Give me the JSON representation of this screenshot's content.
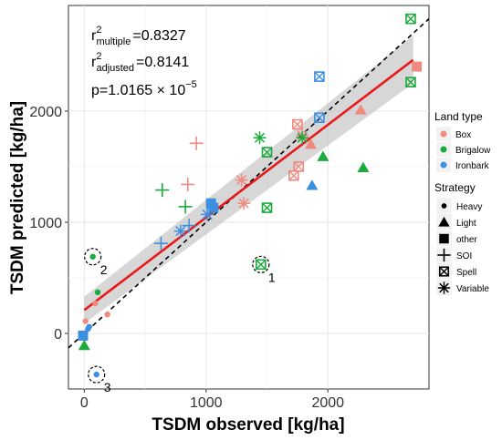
{
  "chart_data": {
    "type": "scatter",
    "title": "",
    "xlabel": "TSDM observed [kg/ha]",
    "ylabel": "TSDM predicted [kg/ha]",
    "xlim": [
      -130,
      2830
    ],
    "ylim": [
      -500,
      2950
    ],
    "xticks": [
      0,
      1000,
      2000
    ],
    "yticks": [
      0,
      1000,
      2000
    ],
    "grid": true,
    "stats": {
      "r2_multiple": {
        "base": "r",
        "sup": "2",
        "sub": "multiple",
        "value": "=0.8327"
      },
      "r2_adjusted": {
        "base": "r",
        "sup": "2",
        "sub": "adjusted",
        "value": "=0.8141"
      },
      "p_value": {
        "text": "p=1.0165 × 10",
        "exp": "−5"
      }
    },
    "reference_line": {
      "style": "dashed",
      "color": "#000000",
      "slope": 1,
      "intercept": 0
    },
    "fit_line": {
      "color": "#e8191b",
      "x": [
        0,
        2700
      ],
      "y": [
        210,
        2460
      ],
      "band_lower": [
        90,
        2250
      ],
      "band_upper": [
        330,
        2680
      ],
      "band_color": "#bdbdbd"
    },
    "legend": {
      "placement": "right",
      "land_type": {
        "title": "Land type",
        "items": [
          {
            "label": "Box",
            "color": "#f08a80"
          },
          {
            "label": "Brigalow",
            "color": "#1aab3c"
          },
          {
            "label": "Ironbark",
            "color": "#3d8fe0"
          }
        ]
      },
      "strategy": {
        "title": "Strategy",
        "items": [
          {
            "label": "Heavy",
            "shape": "dot"
          },
          {
            "label": "Light",
            "shape": "triangle"
          },
          {
            "label": "other",
            "shape": "square"
          },
          {
            "label": "SOI",
            "shape": "plus"
          },
          {
            "label": "Spell",
            "shape": "boxx"
          },
          {
            "label": "Variable",
            "shape": "asterisk"
          }
        ]
      }
    },
    "points": [
      {
        "x": 10,
        "y": 110,
        "land": "Box",
        "shape": "dot"
      },
      {
        "x": 90,
        "y": 270,
        "land": "Box",
        "shape": "dot"
      },
      {
        "x": 190,
        "y": 170,
        "land": "Box",
        "shape": "dot"
      },
      {
        "x": 110,
        "y": 370,
        "land": "Brigalow",
        "shape": "dot"
      },
      {
        "x": 70,
        "y": 690,
        "land": "Brigalow",
        "shape": "dot"
      },
      {
        "x": 100,
        "y": -370,
        "land": "Ironbark",
        "shape": "dot"
      },
      {
        "x": 30,
        "y": 40,
        "land": "Ironbark",
        "shape": "dot"
      },
      {
        "x": 40,
        "y": 60,
        "land": "Ironbark",
        "shape": "dot"
      },
      {
        "x": -10,
        "y": -20,
        "land": "Ironbark",
        "shape": "square"
      },
      {
        "x": 0,
        "y": -110,
        "land": "Brigalow",
        "shape": "triangle"
      },
      {
        "x": 1860,
        "y": 1700,
        "land": "Box",
        "shape": "triangle"
      },
      {
        "x": 2270,
        "y": 2010,
        "land": "Box",
        "shape": "triangle"
      },
      {
        "x": 1960,
        "y": 1590,
        "land": "Brigalow",
        "shape": "triangle"
      },
      {
        "x": 2290,
        "y": 1490,
        "land": "Brigalow",
        "shape": "triangle"
      },
      {
        "x": 1870,
        "y": 1330,
        "land": "Ironbark",
        "shape": "triangle"
      },
      {
        "x": 1040,
        "y": 1170,
        "land": "Ironbark",
        "shape": "square"
      },
      {
        "x": 1060,
        "y": 1130,
        "land": "Ironbark",
        "shape": "square"
      },
      {
        "x": 2730,
        "y": 2400,
        "land": "Box",
        "shape": "square"
      },
      {
        "x": 920,
        "y": 1710,
        "land": "Box",
        "shape": "plus"
      },
      {
        "x": 850,
        "y": 1340,
        "land": "Box",
        "shape": "plus"
      },
      {
        "x": 640,
        "y": 1290,
        "land": "Brigalow",
        "shape": "plus"
      },
      {
        "x": 830,
        "y": 1140,
        "land": "Brigalow",
        "shape": "plus"
      },
      {
        "x": 630,
        "y": 810,
        "land": "Ironbark",
        "shape": "plus"
      },
      {
        "x": 860,
        "y": 970,
        "land": "Ironbark",
        "shape": "plus"
      },
      {
        "x": 1750,
        "y": 1880,
        "land": "Box",
        "shape": "boxx"
      },
      {
        "x": 1760,
        "y": 1500,
        "land": "Box",
        "shape": "boxx"
      },
      {
        "x": 1720,
        "y": 1420,
        "land": "Box",
        "shape": "boxx"
      },
      {
        "x": 2680,
        "y": 2830,
        "land": "Brigalow",
        "shape": "boxx"
      },
      {
        "x": 2680,
        "y": 2260,
        "land": "Brigalow",
        "shape": "boxx"
      },
      {
        "x": 1500,
        "y": 1630,
        "land": "Brigalow",
        "shape": "boxx"
      },
      {
        "x": 1500,
        "y": 1130,
        "land": "Brigalow",
        "shape": "boxx"
      },
      {
        "x": 1450,
        "y": 620,
        "land": "Brigalow",
        "shape": "boxx"
      },
      {
        "x": 1930,
        "y": 2310,
        "land": "Ironbark",
        "shape": "boxx"
      },
      {
        "x": 1930,
        "y": 1940,
        "land": "Ironbark",
        "shape": "boxx"
      },
      {
        "x": 1290,
        "y": 1380,
        "land": "Box",
        "shape": "asterisk"
      },
      {
        "x": 1310,
        "y": 1170,
        "land": "Box",
        "shape": "asterisk"
      },
      {
        "x": 1790,
        "y": 1780,
        "land": "Box",
        "shape": "asterisk"
      },
      {
        "x": 1440,
        "y": 1760,
        "land": "Brigalow",
        "shape": "asterisk"
      },
      {
        "x": 1790,
        "y": 1760,
        "land": "Brigalow",
        "shape": "asterisk"
      },
      {
        "x": 790,
        "y": 920,
        "land": "Ironbark",
        "shape": "asterisk"
      },
      {
        "x": 1010,
        "y": 1070,
        "land": "Ironbark",
        "shape": "asterisk"
      }
    ],
    "annotations": [
      {
        "label": "1",
        "x": 1450,
        "y": 620
      },
      {
        "label": "2",
        "x": 70,
        "y": 690
      },
      {
        "label": "3",
        "x": 100,
        "y": -370
      }
    ]
  }
}
